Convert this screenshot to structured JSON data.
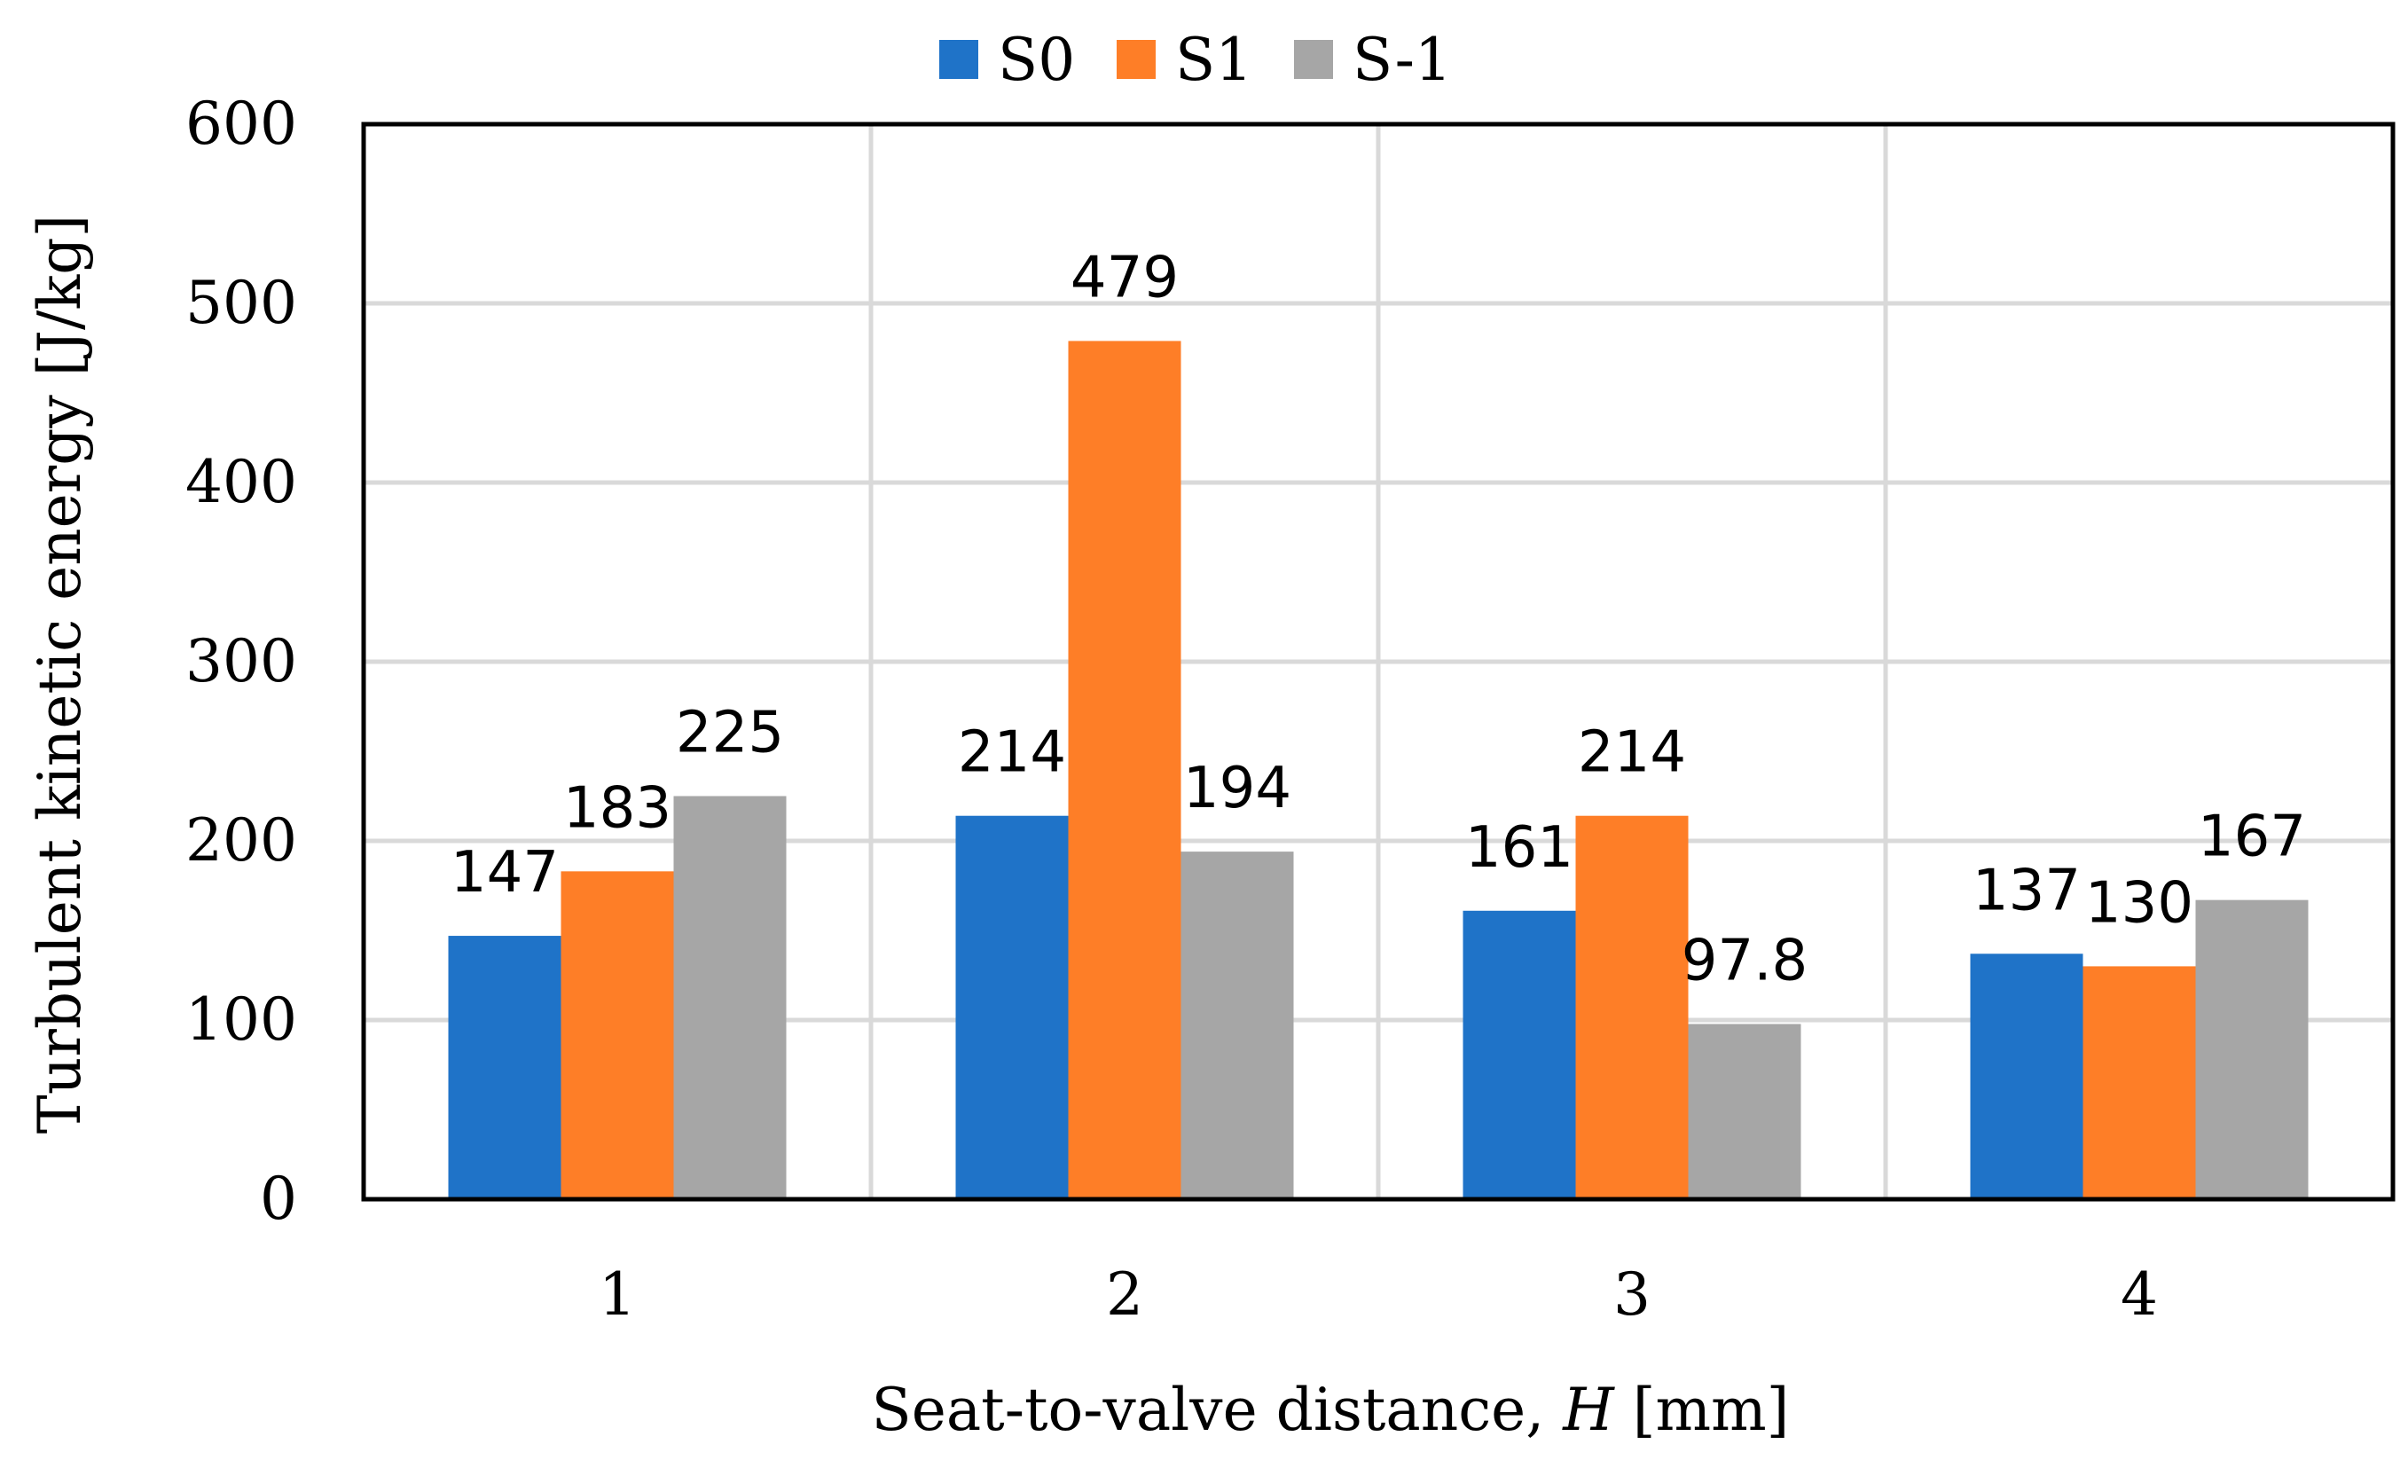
{
  "chart_data": {
    "type": "bar",
    "categories": [
      "1",
      "2",
      "3",
      "4"
    ],
    "series": [
      {
        "name": "S0",
        "color": "#1f73c8",
        "values": [
          147,
          214,
          161,
          137
        ],
        "labels": [
          "147",
          "214",
          "161",
          "137"
        ]
      },
      {
        "name": "S1",
        "color": "#fe7e27",
        "values": [
          183,
          479,
          214,
          130
        ],
        "labels": [
          "183",
          "479",
          "214",
          "130"
        ]
      },
      {
        "name": "S-1",
        "color": "#a6a6a6",
        "values": [
          225,
          194,
          97.8,
          167
        ],
        "labels": [
          "225",
          "194",
          "97.8",
          "167"
        ]
      }
    ],
    "ylim": [
      0,
      600
    ],
    "yticks": [
      "0",
      "100",
      "200",
      "300",
      "400",
      "500",
      "600"
    ],
    "ylabel": "Turbulent kinetic energy [J/kg]",
    "xlabel_prefix": "Seat-to-valve distance, ",
    "xlabel_var": "H",
    "xlabel_suffix": " [mm]",
    "grid": true,
    "legend_position": "top-center"
  }
}
